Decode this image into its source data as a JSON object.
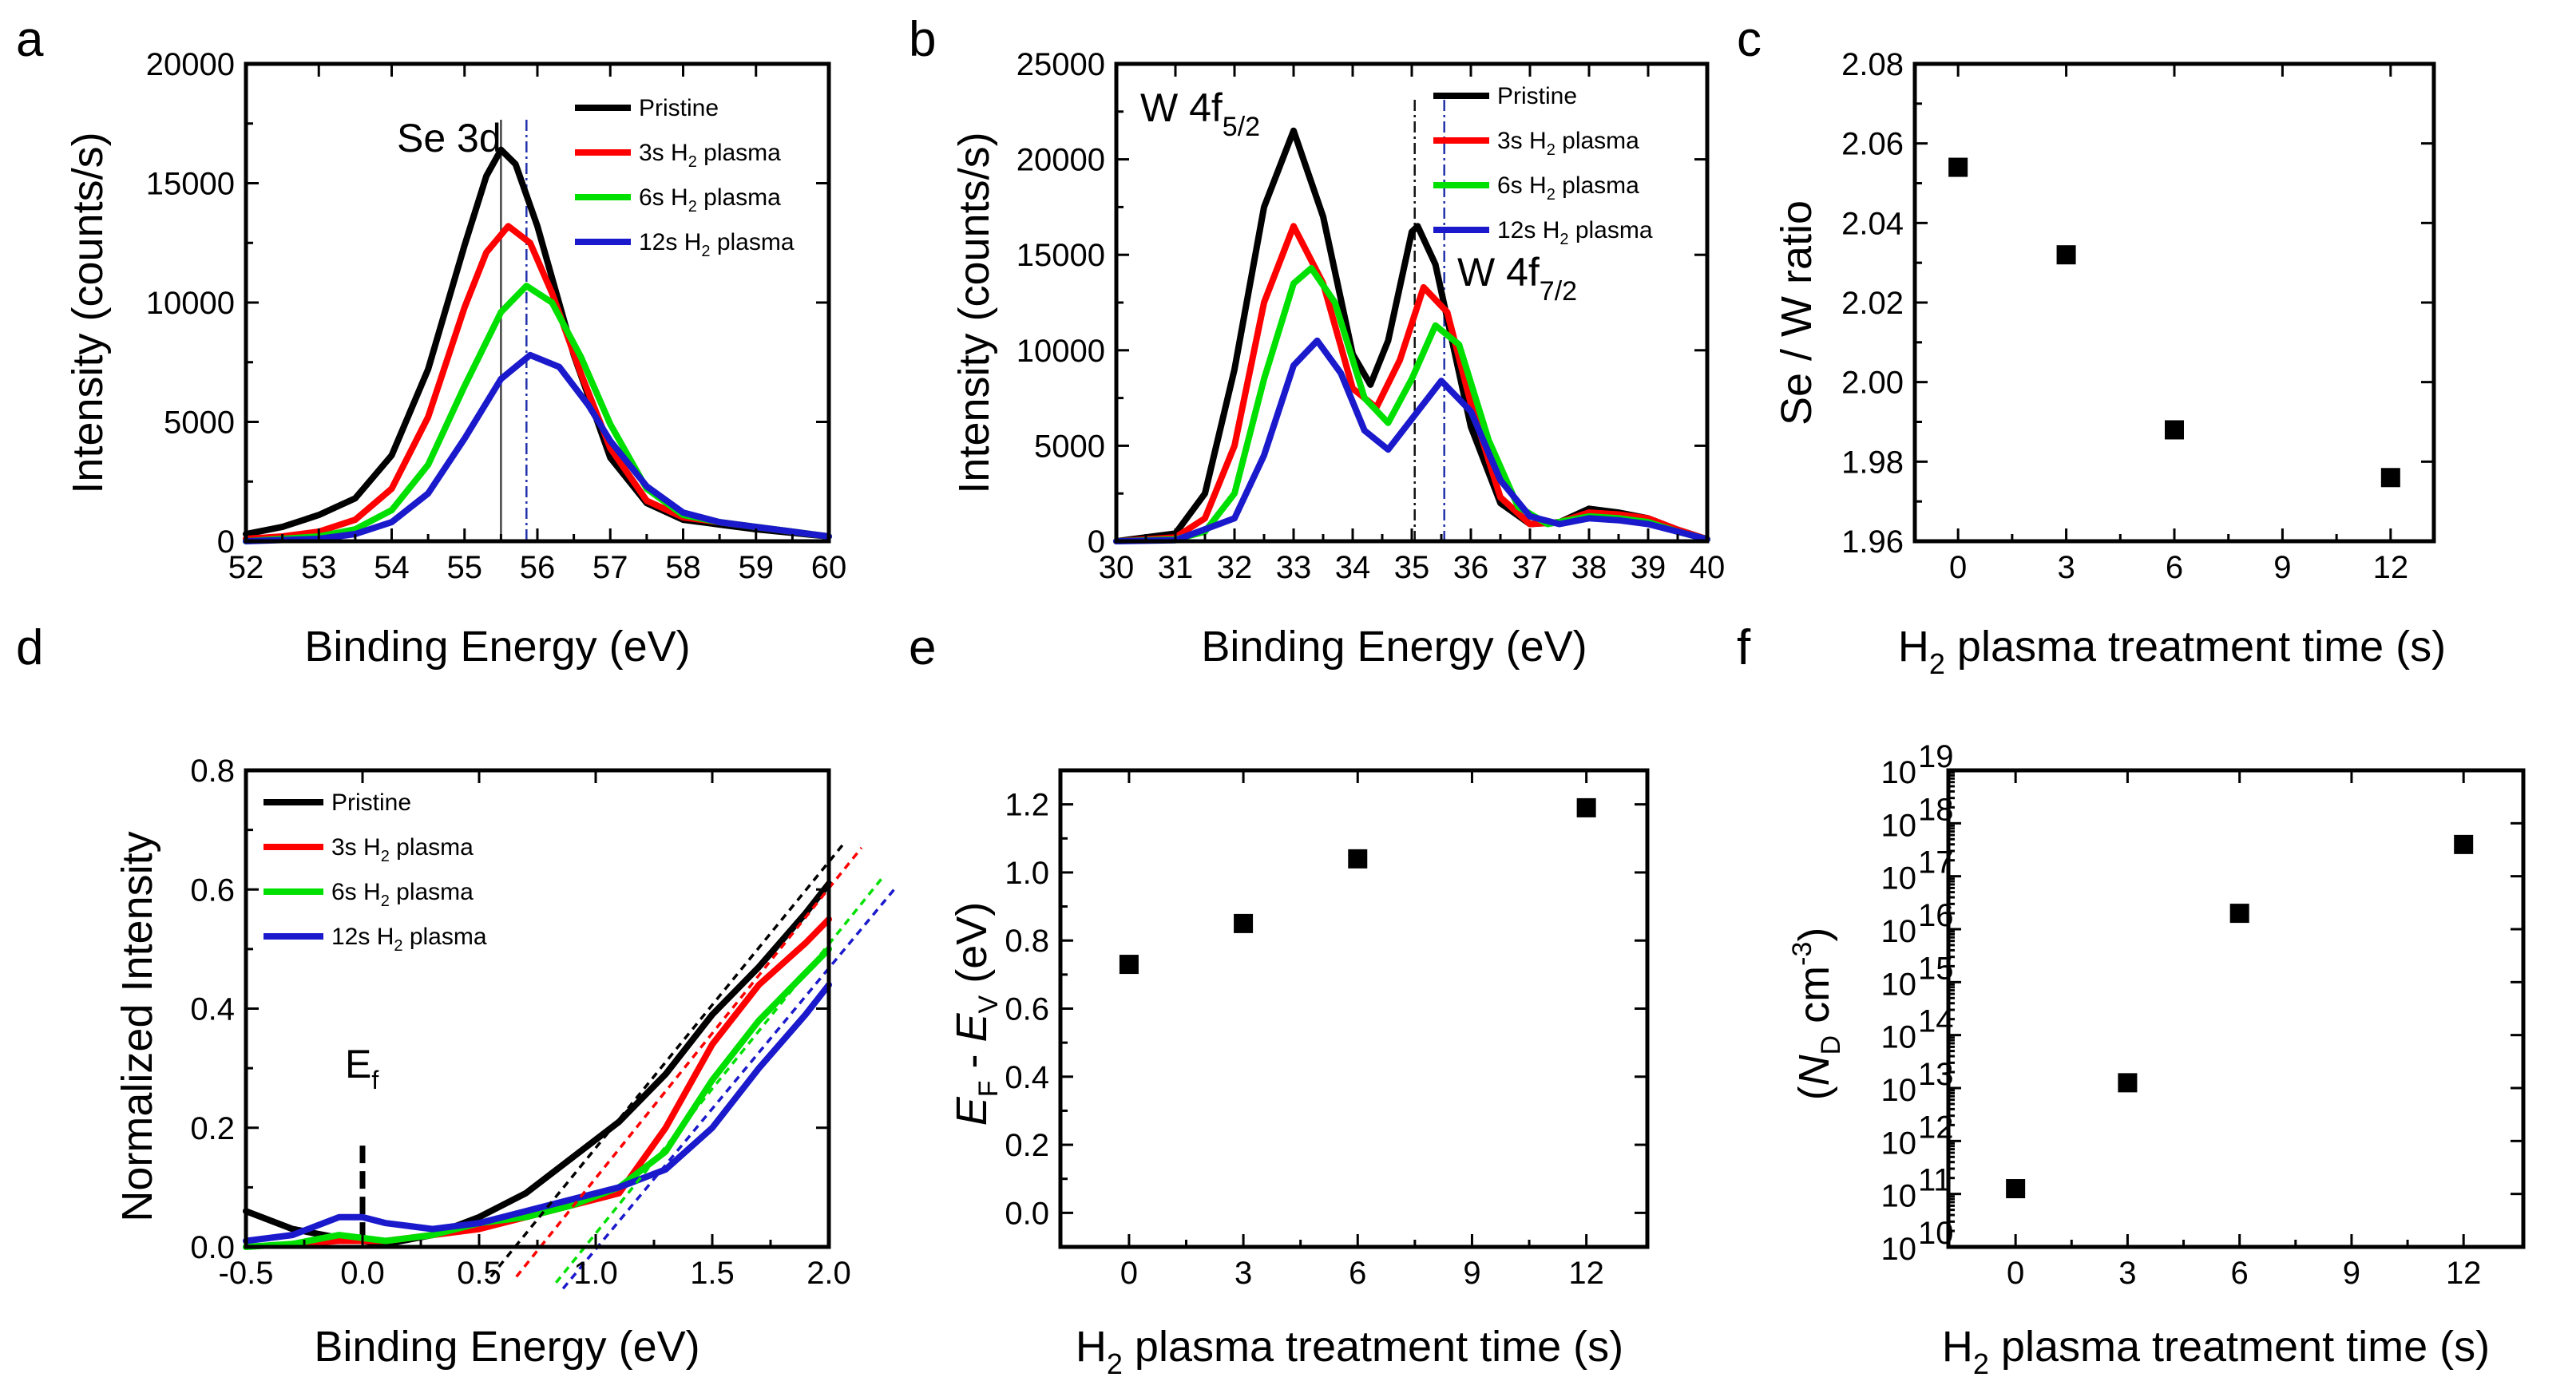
{
  "series_colors": {
    "Pristine": "#000000",
    "3s": "#ff0000",
    "6s": "#00e000",
    "12s": "#1a1acc"
  },
  "chart_data": [
    {
      "panel": "a",
      "type": "line",
      "xlabel": "Binding Energy (eV)",
      "ylabel": "Intensity (counts/s)",
      "xlim": [
        52,
        60
      ],
      "ylim": [
        0,
        20000
      ],
      "xticks": [
        "52",
        "53",
        "54",
        "55",
        "56",
        "57",
        "58",
        "59",
        "60"
      ],
      "yticks": [
        "0",
        "5000",
        "10000",
        "15000",
        "20000"
      ],
      "annotations": [
        {
          "text": "Se 3d"
        }
      ],
      "legend": [
        "Pristine",
        "3s H₂ plasma",
        "6s H₂ plasma",
        "12s H₂ plasma"
      ],
      "vlines": [
        55.5,
        55.85
      ],
      "series": [
        {
          "name": "Pristine",
          "key": "Pristine",
          "x": [
            52,
            52.5,
            53,
            53.5,
            54,
            54.5,
            55,
            55.3,
            55.5,
            55.7,
            56,
            56.5,
            57,
            57.5,
            58,
            58.5,
            59,
            59.5,
            60
          ],
          "values": [
            300,
            600,
            1100,
            1800,
            3600,
            7200,
            12400,
            15300,
            16400,
            15800,
            13200,
            7800,
            3500,
            1600,
            900,
            700,
            500,
            350,
            200
          ]
        },
        {
          "name": "3s H₂ plasma",
          "key": "3s",
          "x": [
            52,
            52.5,
            53,
            53.5,
            54,
            54.5,
            55,
            55.3,
            55.6,
            55.9,
            56.2,
            56.6,
            57,
            57.5,
            58,
            58.5,
            59,
            59.5,
            60
          ],
          "values": [
            100,
            200,
            400,
            900,
            2200,
            5200,
            9800,
            12100,
            13200,
            12500,
            10400,
            7000,
            3900,
            1700,
            1000,
            800,
            600,
            400,
            200
          ]
        },
        {
          "name": "6s H₂ plasma",
          "key": "6s",
          "x": [
            52,
            52.5,
            53,
            53.5,
            54,
            54.5,
            55,
            55.5,
            55.85,
            56.2,
            56.6,
            57,
            57.5,
            58,
            58.5,
            59,
            59.5,
            60
          ],
          "values": [
            0,
            100,
            200,
            500,
            1300,
            3200,
            6500,
            9600,
            10700,
            10000,
            7700,
            4900,
            2200,
            1100,
            800,
            600,
            400,
            200
          ]
        },
        {
          "name": "12s H₂ plasma",
          "key": "12s",
          "x": [
            52,
            52.5,
            53,
            53.5,
            54,
            54.5,
            55,
            55.5,
            55.9,
            56.3,
            56.7,
            57,
            57.5,
            58,
            58.5,
            59,
            59.5,
            60
          ],
          "values": [
            0,
            50,
            100,
            300,
            800,
            2000,
            4300,
            6800,
            7800,
            7300,
            5700,
            4200,
            2300,
            1200,
            800,
            600,
            400,
            200
          ]
        }
      ]
    },
    {
      "panel": "b",
      "type": "line",
      "xlabel": "Binding Energy (eV)",
      "ylabel": "Intensity (counts/s)",
      "xlim": [
        30,
        40
      ],
      "ylim": [
        0,
        25000
      ],
      "xticks": [
        "30",
        "31",
        "32",
        "33",
        "34",
        "35",
        "36",
        "37",
        "38",
        "39",
        "40"
      ],
      "yticks": [
        "0",
        "5000",
        "10000",
        "15000",
        "20000",
        "25000"
      ],
      "annotations": [
        {
          "text": "W 4f",
          "sub": "5/2"
        },
        {
          "text": "W 4f",
          "sub": "7/2"
        }
      ],
      "legend": [
        "Pristine",
        "3s H₂ plasma",
        "6s H₂ plasma",
        "12s H₂ plasma"
      ],
      "vlines": [
        35.05,
        35.55
      ],
      "series": [
        {
          "name": "Pristine",
          "key": "Pristine",
          "x": [
            30,
            31,
            31.5,
            32,
            32.5,
            33,
            33.5,
            34,
            34.3,
            34.6,
            35,
            35.1,
            35.4,
            36,
            36.5,
            37,
            37.5,
            38,
            38.5,
            39,
            39.5,
            40
          ],
          "values": [
            0,
            400,
            2500,
            9000,
            17500,
            21500,
            17000,
            9800,
            8200,
            10500,
            16200,
            16500,
            14500,
            6000,
            2000,
            900,
            1000,
            1700,
            1500,
            1200,
            600,
            100
          ]
        },
        {
          "name": "3s H₂ plasma",
          "key": "3s",
          "x": [
            30,
            31,
            31.5,
            32,
            32.5,
            33,
            33.5,
            34,
            34.4,
            34.8,
            35.2,
            35.6,
            36,
            36.5,
            37,
            37.5,
            38,
            38.5,
            39,
            39.5,
            40
          ],
          "values": [
            0,
            200,
            1200,
            5000,
            12500,
            16500,
            13500,
            8000,
            7000,
            9500,
            13300,
            12000,
            7200,
            2300,
            900,
            1000,
            1500,
            1400,
            1200,
            600,
            100
          ]
        },
        {
          "name": "6s H₂ plasma",
          "key": "6s",
          "x": [
            30,
            31,
            31.5,
            32,
            32.5,
            33,
            33.3,
            33.7,
            34.2,
            34.6,
            35,
            35.4,
            35.8,
            36.3,
            36.8,
            37.3,
            38,
            38.5,
            39,
            39.5,
            40
          ],
          "values": [
            0,
            100,
            500,
            2500,
            8500,
            13500,
            14300,
            12500,
            7500,
            6200,
            8500,
            11300,
            10300,
            5300,
            1800,
            900,
            1300,
            1200,
            1000,
            500,
            100
          ]
        },
        {
          "name": "12s H₂ plasma",
          "key": "12s",
          "x": [
            30,
            31,
            32,
            32.5,
            33,
            33.4,
            33.8,
            34.2,
            34.6,
            35,
            35.5,
            36,
            36.5,
            37,
            37.5,
            38,
            38.5,
            39,
            39.5,
            40
          ],
          "values": [
            0,
            50,
            1200,
            4500,
            9200,
            10500,
            8800,
            5800,
            4800,
            6400,
            8400,
            6800,
            3200,
            1300,
            900,
            1200,
            1100,
            900,
            500,
            100
          ]
        }
      ]
    },
    {
      "panel": "c",
      "type": "scatter",
      "xlabel": "H₂ plasma treatment time (s)",
      "ylabel": "Se / W ratio",
      "xlim": [
        -1.2,
        13.2
      ],
      "ylim": [
        1.96,
        2.08
      ],
      "xticks": [
        "0",
        "3",
        "6",
        "9",
        "12"
      ],
      "yticks": [
        "1.96",
        "1.98",
        "2.00",
        "2.02",
        "2.04",
        "2.06",
        "2.08"
      ],
      "x": [
        0,
        3,
        6,
        12
      ],
      "values": [
        2.054,
        2.032,
        1.988,
        1.976
      ]
    },
    {
      "panel": "d",
      "type": "line",
      "xlabel": "Binding Energy (eV)",
      "ylabel": "Normalized Intensity",
      "xlim": [
        -0.5,
        2.0
      ],
      "ylim": [
        0,
        0.8
      ],
      "xticks": [
        "-0.5",
        "0.0",
        "0.5",
        "1.0",
        "1.5",
        "2.0"
      ],
      "yticks": [
        "0.0",
        "0.2",
        "0.4",
        "0.6",
        "0.8"
      ],
      "annotations": [
        {
          "text": "E",
          "sub": "f"
        }
      ],
      "legend": [
        "Pristine",
        "3s H₂ plasma",
        "6s H₂ plasma",
        "12s H₂ plasma"
      ],
      "series": [
        {
          "name": "Pristine",
          "key": "Pristine",
          "x": [
            -0.5,
            -0.3,
            -0.1,
            0.1,
            0.3,
            0.5,
            0.7,
            0.9,
            1.1,
            1.3,
            1.5,
            1.7,
            1.9,
            2.0
          ],
          "values": [
            0.06,
            0.03,
            0.015,
            0.005,
            0.02,
            0.05,
            0.09,
            0.15,
            0.21,
            0.29,
            0.39,
            0.47,
            0.56,
            0.61
          ]
        },
        {
          "name": "3s H₂ plasma",
          "key": "3s",
          "x": [
            -0.3,
            -0.1,
            0.1,
            0.3,
            0.5,
            0.7,
            0.9,
            1.1,
            1.3,
            1.5,
            1.7,
            1.9,
            2.0
          ],
          "values": [
            0.005,
            0.01,
            0.01,
            0.02,
            0.03,
            0.05,
            0.07,
            0.09,
            0.2,
            0.34,
            0.44,
            0.51,
            0.55
          ]
        },
        {
          "name": "6s H₂ plasma",
          "key": "6s",
          "x": [
            -0.5,
            -0.3,
            -0.1,
            0.1,
            0.3,
            0.5,
            0.7,
            0.9,
            1.1,
            1.3,
            1.5,
            1.7,
            1.9,
            2.0
          ],
          "values": [
            0.0,
            0.005,
            0.02,
            0.01,
            0.02,
            0.04,
            0.05,
            0.07,
            0.1,
            0.16,
            0.28,
            0.38,
            0.46,
            0.5
          ]
        },
        {
          "name": "12s H₂ plasma",
          "key": "12s",
          "x": [
            -0.5,
            -0.3,
            -0.1,
            0.0,
            0.1,
            0.3,
            0.5,
            0.7,
            0.9,
            1.1,
            1.3,
            1.5,
            1.7,
            1.9,
            2.0
          ],
          "values": [
            0.01,
            0.02,
            0.05,
            0.05,
            0.04,
            0.03,
            0.04,
            0.06,
            0.08,
            0.1,
            0.13,
            0.2,
            0.3,
            0.39,
            0.44
          ]
        }
      ],
      "fits": [
        {
          "key": "Pristine",
          "x": [
            0.55,
            2.07
          ],
          "values": [
            -0.05,
            0.68
          ]
        },
        {
          "key": "3s",
          "x": [
            0.66,
            2.14
          ],
          "values": [
            -0.05,
            0.67
          ]
        },
        {
          "key": "6s",
          "x": [
            0.83,
            2.23
          ],
          "values": [
            -0.06,
            0.62
          ]
        },
        {
          "key": "12s",
          "x": [
            0.86,
            2.28
          ],
          "values": [
            -0.07,
            0.6
          ]
        }
      ],
      "ef_line": 0.0
    },
    {
      "panel": "e",
      "type": "scatter",
      "xlabel": "H₂ plasma treatment time (s)",
      "ylabel": "E_F - E_V (eV)",
      "xlim": [
        -1.8,
        13.6
      ],
      "ylim": [
        -0.1,
        1.3
      ],
      "xticks": [
        "0",
        "3",
        "6",
        "9",
        "12"
      ],
      "yticks": [
        "0.0",
        "0.2",
        "0.4",
        "0.6",
        "0.8",
        "1.0",
        "1.2"
      ],
      "x": [
        0,
        3,
        6,
        12
      ],
      "values": [
        0.73,
        0.85,
        1.04,
        1.19
      ]
    },
    {
      "panel": "f",
      "type": "scatter",
      "xlabel": "H₂ plasma treatment time (s)",
      "ylabel": "(N_D cm⁻³)",
      "yscale": "log",
      "xlim": [
        -1.8,
        13.6
      ],
      "ylim": [
        10,
        19
      ],
      "xticks": [
        "0",
        "3",
        "6",
        "9",
        "12"
      ],
      "yticks": [
        "10",
        "11",
        "12",
        "13",
        "14",
        "15",
        "16",
        "17",
        "18",
        "19"
      ],
      "x": [
        0,
        3,
        6,
        12
      ],
      "values": [
        11.1,
        13.1,
        16.3,
        17.6
      ]
    }
  ],
  "labels": {
    "panel_a": "a",
    "panel_b": "b",
    "panel_c": "c",
    "panel_d": "d",
    "panel_e": "e",
    "panel_f": "f",
    "se3d": "Se 3d",
    "w4f": "W 4f",
    "sub52": "5/2",
    "sub72": "7/2",
    "ef_main": "E",
    "ef_sub": "f",
    "legend_pristine": "Pristine",
    "legend_prefix_3": "3s H",
    "legend_prefix_6": "6s H",
    "legend_prefix_12": "12s H",
    "legend_sub": "2",
    "legend_suffix": " plasma",
    "be_label": "Binding Energy (eV)",
    "intensity_label": "Intensity (counts/s)",
    "norm_label": "Normalized Intensity",
    "ratio_label": "Se / W ratio",
    "time_main": "H",
    "time_sub": "2",
    "time_rest": " plasma treatment time (s)",
    "efev_E": "E",
    "efev_F": "F",
    "efev_dash": " - ",
    "efev_V": "V",
    "efev_unit": " (eV)",
    "nd_open": "(",
    "nd_N": "N",
    "nd_D": "D",
    "nd_cm": " cm",
    "nd_exp": "-3",
    "nd_close": ")",
    "log_base": "10"
  }
}
